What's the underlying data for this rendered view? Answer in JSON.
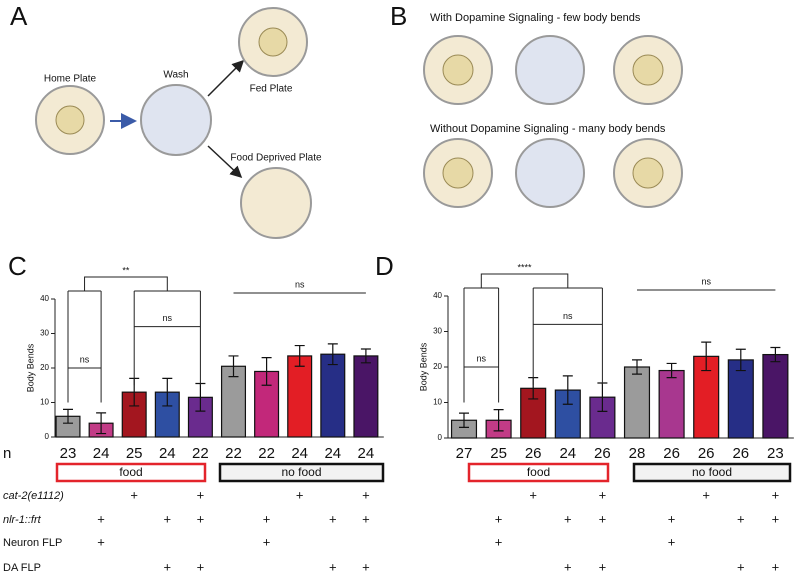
{
  "panel_a": {
    "label": "A",
    "home": "Home Plate",
    "wash": "Wash",
    "fed": "Fed Plate",
    "deprived": "Food Deprived Plate"
  },
  "panel_b": {
    "label": "B",
    "with": "With Dopamine Signaling - few body bends",
    "without": "Without Dopamine Signaling - many body bends"
  },
  "n_label": "n",
  "chart_data": [
    {
      "type": "bar",
      "panel": "C",
      "ylabel": "Body  Bends",
      "categories": [
        null,
        null,
        null,
        null,
        null,
        null,
        null,
        null,
        null,
        null
      ],
      "values": [
        6,
        4,
        13,
        13,
        11.5,
        20.5,
        19,
        23.5,
        24,
        23.5
      ],
      "errors": [
        2,
        3,
        4,
        4,
        4,
        3,
        4,
        3,
        3,
        2
      ],
      "colors": [
        "#9b9b9b",
        "#c23b86",
        "#a3161f",
        "#2e4fa2",
        "#6a2b8e",
        "#9b9b9b",
        "#c2287a",
        "#e31e25",
        "#262e86",
        "#4a1566"
      ],
      "n": [
        23,
        24,
        25,
        24,
        22,
        22,
        22,
        24,
        24,
        24
      ],
      "ylim": [
        0,
        40
      ],
      "yticks": [
        0,
        10,
        20,
        30,
        40
      ],
      "annotations": [
        "**",
        "ns",
        "ns",
        "ns"
      ],
      "groups": [
        "food",
        "no food"
      ],
      "rows": [
        {
          "label": "cat-2(e1112)",
          "marks": [
            null,
            null,
            "+",
            null,
            "+",
            null,
            null,
            "+",
            null,
            "+"
          ]
        },
        {
          "label": "nlr-1::frt",
          "marks": [
            null,
            "+",
            null,
            "+",
            "+",
            null,
            "+",
            null,
            "+",
            "+"
          ]
        },
        {
          "label": "Neuron FLP",
          "marks": [
            null,
            "+",
            null,
            null,
            null,
            null,
            "+",
            null,
            null,
            null
          ]
        },
        {
          "label": "DA FLP",
          "marks": [
            null,
            null,
            null,
            "+",
            "+",
            null,
            null,
            null,
            "+",
            "+"
          ]
        }
      ]
    },
    {
      "type": "bar",
      "panel": "D",
      "ylabel": "Body  Bends",
      "categories": [
        null,
        null,
        null,
        null,
        null,
        null,
        null,
        null,
        null,
        null
      ],
      "values": [
        5,
        5,
        14,
        13.5,
        11.5,
        20,
        19,
        23,
        22,
        23.5
      ],
      "errors": [
        2,
        3,
        3,
        4,
        4,
        2,
        2,
        4,
        3,
        2
      ],
      "colors": [
        "#9b9b9b",
        "#c23b86",
        "#a3161f",
        "#2e4fa2",
        "#6a2b8e",
        "#9b9b9b",
        "#a8378f",
        "#e31e25",
        "#262e86",
        "#4a1566"
      ],
      "n": [
        27,
        25,
        26,
        24,
        26,
        28,
        26,
        26,
        26,
        23
      ],
      "ylim": [
        0,
        40
      ],
      "yticks": [
        0,
        10,
        20,
        30,
        40
      ],
      "annotations": [
        "****",
        "ns",
        "ns",
        "ns"
      ],
      "groups": [
        "food",
        "no food"
      ],
      "rows": [
        {
          "marks": [
            null,
            null,
            "+",
            null,
            "+",
            null,
            null,
            "+",
            null,
            "+"
          ]
        },
        {
          "marks": [
            null,
            "+",
            null,
            "+",
            "+",
            null,
            "+",
            null,
            "+",
            "+"
          ]
        },
        {
          "marks": [
            null,
            "+",
            null,
            null,
            null,
            null,
            "+",
            null,
            null,
            null
          ]
        },
        {
          "marks": [
            null,
            null,
            null,
            "+",
            "+",
            null,
            null,
            null,
            "+",
            "+"
          ]
        }
      ]
    }
  ]
}
